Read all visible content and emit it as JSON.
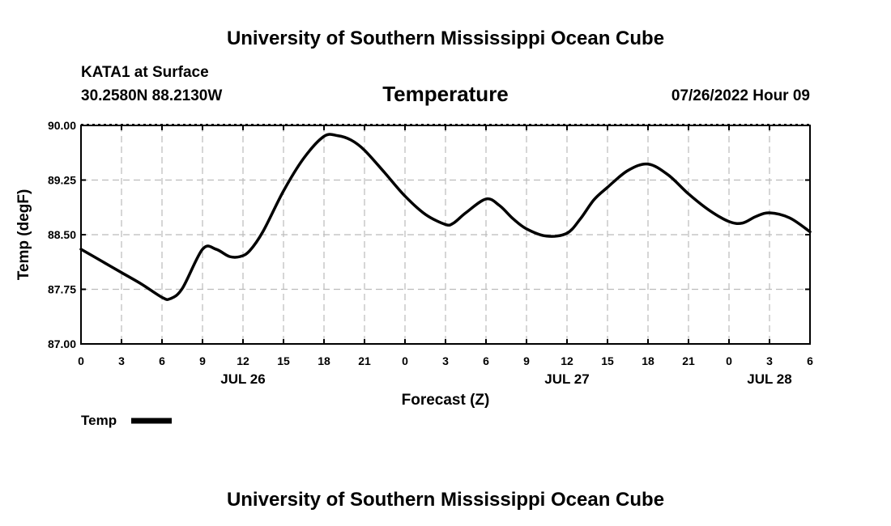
{
  "header": {
    "title_top": "University of Southern Mississippi Ocean Cube",
    "station": "KATA1 at Surface",
    "coords": "30.2580N  88.2130W",
    "chart_title": "Temperature",
    "timestamp": "07/26/2022 Hour 09",
    "title_bottom": "University of Southern Mississippi Ocean Cube"
  },
  "legend": {
    "label": "Temp"
  },
  "colors": {
    "line": "#000000",
    "grid": "#bbbbbb",
    "background": "#ffffff"
  },
  "chart_data": {
    "type": "line",
    "title": "Temperature",
    "xlabel": "Forecast (Z)",
    "ylabel": "Temp (degF)",
    "ylim": [
      87.0,
      90.0
    ],
    "xlim": [
      0,
      54
    ],
    "y_ticks": [
      87.0,
      87.75,
      88.5,
      89.25,
      90.0
    ],
    "y_tick_labels": [
      "87.00",
      "87.75",
      "88.50",
      "89.25",
      "90.00"
    ],
    "x_ticks": [
      0,
      3,
      6,
      9,
      12,
      15,
      18,
      21,
      24,
      27,
      30,
      33,
      36,
      39,
      42,
      45,
      48,
      51,
      54
    ],
    "x_tick_labels": [
      "0",
      "3",
      "6",
      "9",
      "12",
      "15",
      "18",
      "21",
      "0",
      "3",
      "6",
      "9",
      "12",
      "15",
      "18",
      "21",
      "0",
      "3",
      "6"
    ],
    "day_labels": [
      {
        "x": 12,
        "label": "JUL 26"
      },
      {
        "x": 36,
        "label": "JUL 27"
      },
      {
        "x": 51,
        "label": "JUL 28"
      }
    ],
    "grid": true,
    "legend_position": "bottom-left",
    "series": [
      {
        "name": "Temp",
        "x": [
          0,
          1.5,
          3,
          4.5,
          6,
          6.6,
          7.5,
          9,
          10,
          11,
          11.8,
          12.5,
          13.5,
          15,
          16.5,
          18,
          19,
          20,
          21,
          22.5,
          24,
          25.5,
          27,
          27.6,
          28.5,
          30,
          31,
          32,
          33,
          34.5,
          36,
          37,
          38,
          39,
          40.5,
          42,
          43.5,
          45,
          46.5,
          48,
          49,
          50,
          51,
          52.5,
          54
        ],
        "values": [
          88.3,
          88.14,
          87.98,
          87.82,
          87.64,
          87.62,
          87.76,
          88.3,
          88.3,
          88.2,
          88.2,
          88.28,
          88.55,
          89.1,
          89.55,
          89.85,
          89.86,
          89.8,
          89.66,
          89.35,
          89.03,
          88.78,
          88.64,
          88.66,
          88.8,
          88.99,
          88.9,
          88.72,
          88.58,
          88.48,
          88.52,
          88.72,
          88.98,
          89.15,
          89.38,
          89.47,
          89.32,
          89.06,
          88.84,
          88.68,
          88.66,
          88.75,
          88.8,
          88.73,
          88.54
        ]
      }
    ]
  }
}
